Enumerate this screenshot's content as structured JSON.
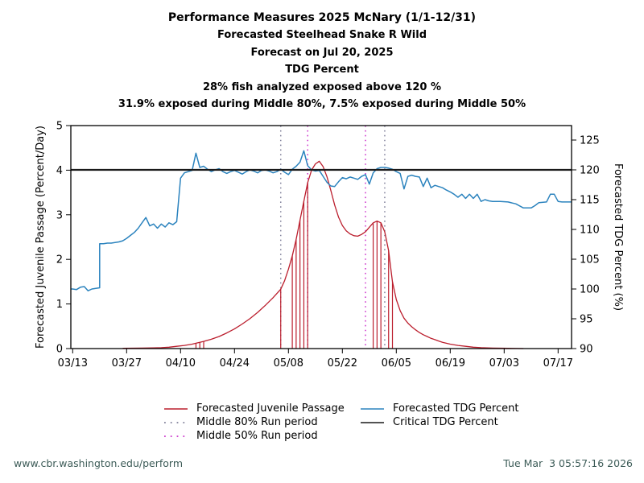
{
  "chart_data": {
    "type": "line",
    "title": "Performance Measures 2025 McNary (1/1-12/31)",
    "subtitles": [
      "Forecasted Steelhead Snake R Wild",
      "Forecast on Jul 20, 2025",
      "TDG Percent",
      "28% fish analyzed exposed above 120 %",
      "31.9% exposed during Middle 80%, 7.5% exposed during Middle 50%"
    ],
    "x_axis": {
      "tick_labels": [
        "03/13",
        "03/27",
        "04/10",
        "04/24",
        "05/08",
        "05/22",
        "06/05",
        "06/19",
        "07/03",
        "07/17"
      ],
      "year": "2025"
    },
    "left_axis": {
      "label": "Forecasted Juvenile Passage (Percent/Day)",
      "ticks": [
        0,
        1,
        2,
        3,
        4,
        5
      ],
      "range": [
        0,
        5
      ]
    },
    "right_axis": {
      "label": "Forecasted TDG Percent (%)",
      "ticks": [
        90,
        95,
        100,
        105,
        110,
        115,
        120,
        125
      ],
      "range": [
        90,
        125
      ],
      "plot_top_value": 127.43
    },
    "critical": {
      "name": "Critical TDG Percent",
      "value": 120,
      "color": "#1a1a1a"
    },
    "middle80": {
      "name": "Middle 80% Run period",
      "dates": [
        "05/06",
        "06/02"
      ],
      "color": "#80809a",
      "style": "dotted"
    },
    "middle50": {
      "name": "Middle 50% Run period",
      "dates": [
        "05/13",
        "05/28"
      ],
      "color": "#cc33cc",
      "style": "dotted"
    },
    "exposure": {
      "name": "Days exposed above critical TDG",
      "color": "#bb1e2d",
      "dates": [
        "04/14",
        "04/15",
        "04/16",
        "05/06",
        "05/09",
        "05/10",
        "05/11",
        "05/12",
        "05/13",
        "05/30",
        "05/31",
        "06/01",
        "06/03",
        "06/04"
      ]
    },
    "series": [
      {
        "name": "Forecasted Juvenile Passage",
        "axis": "left",
        "color": "#bb1e2d",
        "style": "solid",
        "points": [
          [
            "03/26",
            0.005
          ],
          [
            "03/31",
            0.01
          ],
          [
            "04/03",
            0.015
          ],
          [
            "04/05",
            0.02
          ],
          [
            "04/07",
            0.03
          ],
          [
            "04/09",
            0.05
          ],
          [
            "04/11",
            0.07
          ],
          [
            "04/13",
            0.1
          ],
          [
            "04/14",
            0.12
          ],
          [
            "04/15",
            0.14
          ],
          [
            "04/16",
            0.16
          ],
          [
            "04/18",
            0.21
          ],
          [
            "04/20",
            0.27
          ],
          [
            "04/22",
            0.35
          ],
          [
            "04/24",
            0.44
          ],
          [
            "04/26",
            0.55
          ],
          [
            "04/28",
            0.67
          ],
          [
            "04/30",
            0.81
          ],
          [
            "05/02",
            0.97
          ],
          [
            "05/04",
            1.14
          ],
          [
            "05/06",
            1.33
          ],
          [
            "05/07",
            1.52
          ],
          [
            "05/08",
            1.78
          ],
          [
            "05/09",
            2.08
          ],
          [
            "05/10",
            2.45
          ],
          [
            "05/11",
            2.88
          ],
          [
            "05/12",
            3.3
          ],
          [
            "05/13",
            3.72
          ],
          [
            "05/14",
            4.0
          ],
          [
            "05/15",
            4.14
          ],
          [
            "05/16",
            4.2
          ],
          [
            "05/17",
            4.08
          ],
          [
            "05/18",
            3.85
          ],
          [
            "05/19",
            3.55
          ],
          [
            "05/20",
            3.22
          ],
          [
            "05/21",
            2.95
          ],
          [
            "05/22",
            2.76
          ],
          [
            "05/23",
            2.64
          ],
          [
            "05/24",
            2.57
          ],
          [
            "05/25",
            2.53
          ],
          [
            "05/26",
            2.52
          ],
          [
            "05/27",
            2.56
          ],
          [
            "05/28",
            2.62
          ],
          [
            "05/29",
            2.72
          ],
          [
            "05/30",
            2.82
          ],
          [
            "05/31",
            2.86
          ],
          [
            "06/01",
            2.82
          ],
          [
            "06/02",
            2.62
          ],
          [
            "06/03",
            2.2
          ],
          [
            "06/04",
            1.5
          ],
          [
            "06/05",
            1.1
          ],
          [
            "06/06",
            0.85
          ],
          [
            "06/07",
            0.68
          ],
          [
            "06/08",
            0.57
          ],
          [
            "06/09",
            0.49
          ],
          [
            "06/10",
            0.42
          ],
          [
            "06/11",
            0.36
          ],
          [
            "06/12",
            0.31
          ],
          [
            "06/13",
            0.27
          ],
          [
            "06/14",
            0.23
          ],
          [
            "06/15",
            0.2
          ],
          [
            "06/16",
            0.17
          ],
          [
            "06/17",
            0.14
          ],
          [
            "06/18",
            0.12
          ],
          [
            "06/19",
            0.1
          ],
          [
            "06/21",
            0.07
          ],
          [
            "06/23",
            0.05
          ],
          [
            "06/25",
            0.03
          ],
          [
            "06/27",
            0.02
          ],
          [
            "06/30",
            0.01
          ],
          [
            "07/04",
            0.005
          ],
          [
            "07/08",
            0.0
          ]
        ]
      },
      {
        "name": "Forecasted TDG Percent",
        "axis": "right",
        "color": "#2b83be",
        "style": "solid",
        "points": [
          [
            "03/13",
            100.0
          ],
          [
            "03/14",
            99.9
          ],
          [
            "03/15",
            100.3
          ],
          [
            "03/16",
            100.4
          ],
          [
            "03/17",
            99.7
          ],
          [
            "03/18",
            100.0
          ],
          [
            "03/19",
            100.1
          ],
          [
            "03/20",
            100.2
          ],
          [
            "03/20",
            107.6
          ],
          [
            "03/21",
            107.6
          ],
          [
            "03/22",
            107.7
          ],
          [
            "03/23",
            107.7
          ],
          [
            "03/24",
            107.8
          ],
          [
            "03/25",
            107.9
          ],
          [
            "03/26",
            108.1
          ],
          [
            "03/27",
            108.5
          ],
          [
            "03/28",
            109.0
          ],
          [
            "03/29",
            109.5
          ],
          [
            "03/30",
            110.2
          ],
          [
            "03/31",
            111.1
          ],
          [
            "04/01",
            112.0
          ],
          [
            "04/02",
            110.6
          ],
          [
            "04/03",
            110.9
          ],
          [
            "04/04",
            110.2
          ],
          [
            "04/05",
            110.9
          ],
          [
            "04/06",
            110.4
          ],
          [
            "04/07",
            111.1
          ],
          [
            "04/08",
            110.8
          ],
          [
            "04/09",
            111.3
          ],
          [
            "04/10",
            118.6
          ],
          [
            "04/11",
            119.5
          ],
          [
            "04/12",
            119.7
          ],
          [
            "04/13",
            119.9
          ],
          [
            "04/14",
            122.8
          ],
          [
            "04/15",
            120.4
          ],
          [
            "04/16",
            120.6
          ],
          [
            "04/17",
            120.1
          ],
          [
            "04/18",
            119.7
          ],
          [
            "04/19",
            120.0
          ],
          [
            "04/20",
            120.2
          ],
          [
            "04/21",
            119.7
          ],
          [
            "04/22",
            119.4
          ],
          [
            "04/23",
            119.7
          ],
          [
            "04/24",
            119.9
          ],
          [
            "04/25",
            119.6
          ],
          [
            "04/26",
            119.3
          ],
          [
            "04/27",
            119.7
          ],
          [
            "04/28",
            120.0
          ],
          [
            "04/29",
            119.8
          ],
          [
            "04/30",
            119.5
          ],
          [
            "05/01",
            119.9
          ],
          [
            "05/02",
            120.0
          ],
          [
            "05/03",
            119.8
          ],
          [
            "05/04",
            119.5
          ],
          [
            "05/05",
            119.7
          ],
          [
            "05/06",
            120.1
          ],
          [
            "05/07",
            119.6
          ],
          [
            "05/08",
            119.2
          ],
          [
            "05/09",
            120.1
          ],
          [
            "05/10",
            120.6
          ],
          [
            "05/11",
            121.3
          ],
          [
            "05/12",
            123.2
          ],
          [
            "05/13",
            120.7
          ],
          [
            "05/14",
            120.0
          ],
          [
            "05/15",
            119.8
          ],
          [
            "05/16",
            119.9
          ],
          [
            "05/17",
            118.9
          ],
          [
            "05/18",
            117.9
          ],
          [
            "05/19",
            117.3
          ],
          [
            "05/20",
            117.2
          ],
          [
            "05/21",
            118.0
          ],
          [
            "05/22",
            118.7
          ],
          [
            "05/23",
            118.5
          ],
          [
            "05/24",
            118.8
          ],
          [
            "05/25",
            118.6
          ],
          [
            "05/26",
            118.4
          ],
          [
            "05/27",
            118.9
          ],
          [
            "05/28",
            119.2
          ],
          [
            "05/29",
            117.6
          ],
          [
            "05/30",
            119.5
          ],
          [
            "05/31",
            120.2
          ],
          [
            "06/01",
            120.4
          ],
          [
            "06/02",
            120.4
          ],
          [
            "06/03",
            120.3
          ],
          [
            "06/04",
            120.1
          ],
          [
            "06/05",
            119.7
          ],
          [
            "06/06",
            119.4
          ],
          [
            "06/07",
            116.8
          ],
          [
            "06/08",
            118.9
          ],
          [
            "06/09",
            119.1
          ],
          [
            "06/10",
            118.9
          ],
          [
            "06/11",
            118.8
          ],
          [
            "06/12",
            117.2
          ],
          [
            "06/13",
            118.6
          ],
          [
            "06/14",
            117.0
          ],
          [
            "06/15",
            117.4
          ],
          [
            "06/16",
            117.2
          ],
          [
            "06/17",
            117.0
          ],
          [
            "06/18",
            116.6
          ],
          [
            "06/19",
            116.3
          ],
          [
            "06/20",
            115.9
          ],
          [
            "06/21",
            115.4
          ],
          [
            "06/22",
            115.9
          ],
          [
            "06/23",
            115.2
          ],
          [
            "06/24",
            115.9
          ],
          [
            "06/25",
            115.2
          ],
          [
            "06/26",
            115.9
          ],
          [
            "06/27",
            114.7
          ],
          [
            "06/28",
            115.0
          ],
          [
            "06/29",
            114.8
          ],
          [
            "06/30",
            114.7
          ],
          [
            "07/02",
            114.7
          ],
          [
            "07/04",
            114.6
          ],
          [
            "07/06",
            114.3
          ],
          [
            "07/08",
            113.6
          ],
          [
            "07/10",
            113.6
          ],
          [
            "07/11",
            114.0
          ],
          [
            "07/12",
            114.5
          ],
          [
            "07/14",
            114.6
          ],
          [
            "07/15",
            115.9
          ],
          [
            "07/16",
            115.9
          ],
          [
            "07/17",
            114.7
          ],
          [
            "07/18",
            114.6
          ],
          [
            "07/20",
            114.6
          ]
        ]
      }
    ]
  },
  "legend": {
    "items": [
      {
        "label": "Forecasted Juvenile Passage",
        "color": "#bb1e2d",
        "style": "solid",
        "col": 0
      },
      {
        "label": "Middle 80% Run period",
        "color": "#80809a",
        "style": "dotted",
        "col": 0
      },
      {
        "label": "Middle 50% Run period",
        "color": "#cc33cc",
        "style": "dotted",
        "col": 0
      },
      {
        "label": "Forecasted TDG Percent",
        "color": "#2b83be",
        "style": "solid",
        "col": 1
      },
      {
        "label": "Critical TDG Percent",
        "color": "#1a1a1a",
        "style": "solid",
        "col": 1
      }
    ]
  },
  "footer": {
    "url": "www.cbr.washington.edu/perform",
    "timestamp": "Tue Mar  3 05:57:16 2026",
    "color": "#3d5c58"
  }
}
